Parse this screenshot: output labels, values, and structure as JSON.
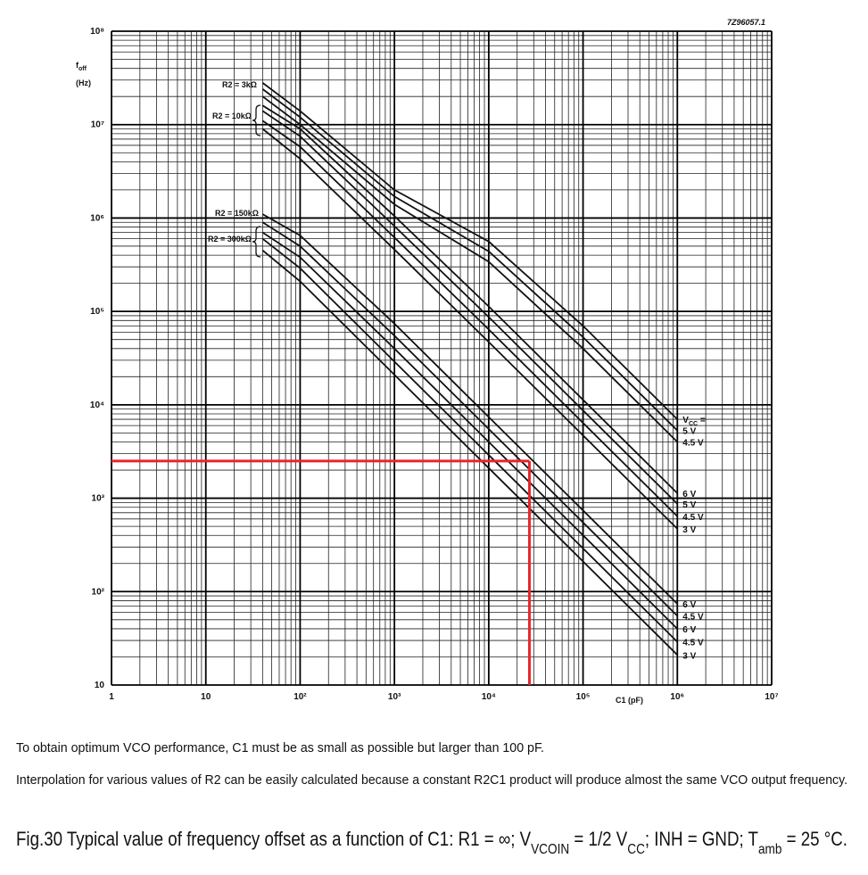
{
  "chart_data": {
    "type": "line",
    "id_code": "7Z96057.1",
    "y_label": [
      "f",
      "off"
    ],
    "y_unit": "(Hz)",
    "x_label": "C1 (pF)",
    "log_x": true,
    "log_y": true,
    "grid": true,
    "minor_grid": true,
    "xlim": [
      1,
      10000000
    ],
    "ylim": [
      10,
      100000000
    ],
    "xticks": [
      1,
      10,
      {
        "value": 100,
        "label": "10²"
      },
      {
        "value": 1000,
        "label": "10³"
      },
      {
        "value": 10000,
        "label": "10⁴"
      },
      {
        "value": 100000,
        "label": "10⁵"
      },
      {
        "value": 1000000,
        "label": "10⁶"
      },
      {
        "value": 10000000,
        "label": "10⁷"
      }
    ],
    "yticks": [
      10,
      {
        "value": 100,
        "label": "10²"
      },
      {
        "value": 1000,
        "label": "10³"
      },
      {
        "value": 10000,
        "label": "10⁴"
      },
      {
        "value": 100000,
        "label": "10⁵"
      },
      {
        "value": 1000000,
        "label": "10⁶"
      },
      {
        "value": 10000000,
        "label": "10⁷"
      },
      {
        "value": 100000000,
        "label": "10⁸"
      }
    ],
    "x": [
      40,
      100,
      1000,
      10000,
      100000,
      1000000
    ],
    "series": [
      {
        "color": "#111111",
        "values": [
          28000000,
          14000000,
          2000000,
          560000,
          70000,
          7000
        ]
      },
      {
        "name": "5 V",
        "color": "#111111",
        "values": [
          24000000,
          12000000,
          1700000,
          440000,
          53000,
          5300
        ]
      },
      {
        "name": "4.5 V",
        "color": "#111111",
        "values": [
          20000000,
          10000000,
          1400000,
          340000,
          40000,
          4000
        ]
      },
      {
        "name": "6 V",
        "color": "#111111",
        "values": [
          16000000,
          9000000,
          1050000,
          113000,
          11300,
          1130
        ]
      },
      {
        "name": "5 V",
        "color": "#111111",
        "values": [
          14000000,
          7500000,
          820000,
          87000,
          8700,
          870
        ]
      },
      {
        "name": "4.5 V",
        "color": "#111111",
        "values": [
          11000000,
          5800000,
          620000,
          64000,
          6400,
          640
        ]
      },
      {
        "name": "3 V",
        "color": "#111111",
        "values": [
          9000000,
          4300000,
          460000,
          47000,
          4700,
          470
        ]
      },
      {
        "name": "6 V",
        "color": "#111111",
        "values": [
          1100000,
          650000,
          74000,
          7400,
          740,
          74
        ]
      },
      {
        "name": "4.5 V",
        "color": "#111111",
        "values": [
          900000,
          500000,
          55000,
          5500,
          550,
          55
        ]
      },
      {
        "name": "6 V",
        "color": "#111111",
        "values": [
          700000,
          380000,
          40000,
          4000,
          400,
          40
        ]
      },
      {
        "name": "4.5 V",
        "color": "#111111",
        "values": [
          600000,
          290000,
          29000,
          2900,
          290,
          29
        ]
      },
      {
        "name": "3 V",
        "color": "#111111",
        "values": [
          450000,
          210000,
          21000,
          2100,
          210,
          21
        ]
      }
    ],
    "annotations": [
      "R2 = 3kΩ",
      "R2 = 10kΩ",
      "R2 = 150kΩ",
      "R2 = 300kΩ"
    ],
    "vcc_label": [
      "V",
      "CC",
      " ="
    ],
    "marker": {
      "x": 27000,
      "y": 2500,
      "color": "#e8262a"
    }
  },
  "notes": [
    "To obtain optimum VCO performance, C1 must be as small as possible but larger than 100 pF.",
    "Interpolation for various values of R2 can be easily calculated because a constant R2C1 product will produce almost the same VCO output frequency."
  ],
  "caption": [
    "Fig.30  Typical value of frequency offset as a function of C1: R1 = ∞; V",
    "VCOIN",
    " = 1/2 V",
    "CC",
    "; INH = GND; T",
    "amb",
    " = 25 °C."
  ]
}
